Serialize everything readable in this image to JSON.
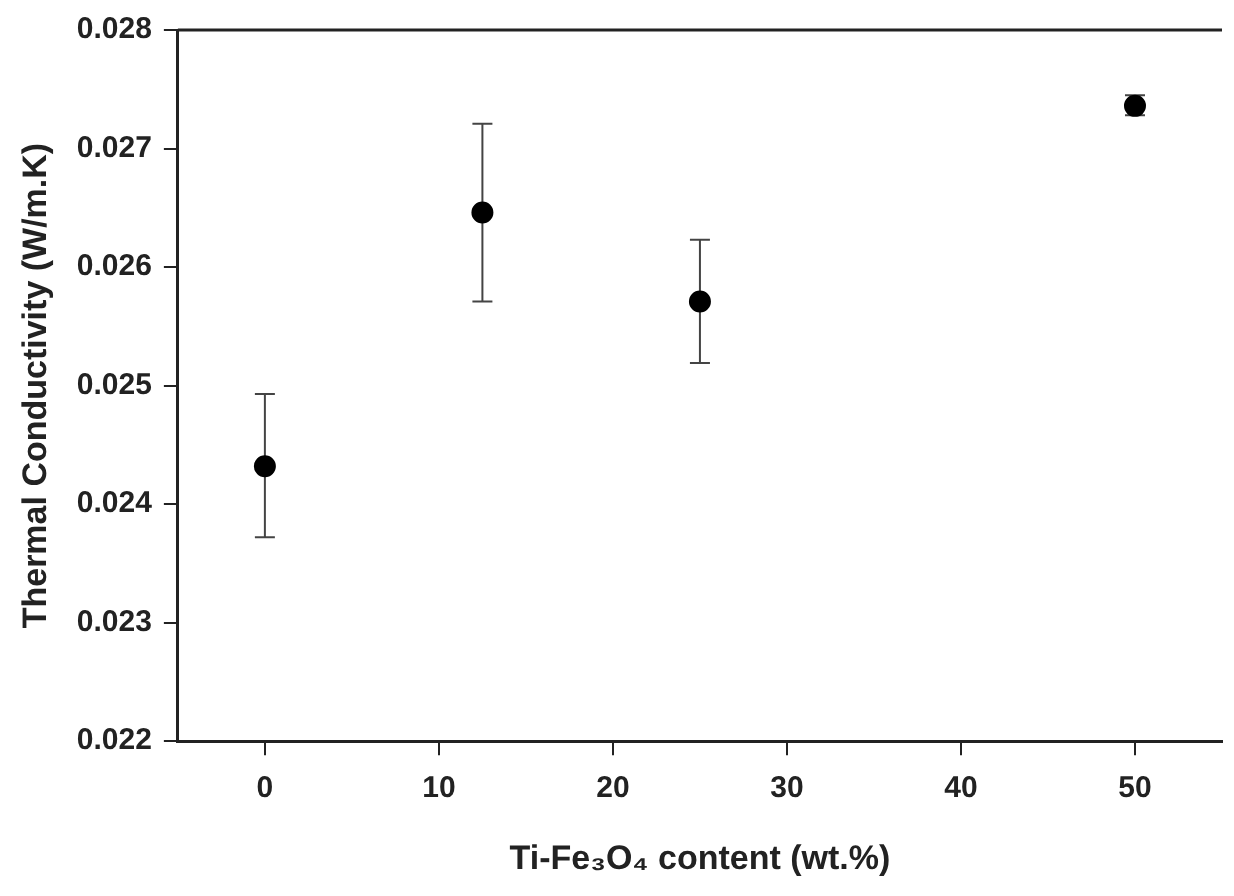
{
  "chart_data": {
    "type": "scatter",
    "xlabel": "Ti-Fe₃O₄ content (wt.%)",
    "ylabel": "Thermal Conductivity (W/m.K)",
    "x": [
      0,
      12.5,
      25,
      50
    ],
    "series": [
      {
        "color": "#000000",
        "values": [
          0.02432,
          0.02646,
          0.02571,
          0.02736
        ],
        "errors": [
          [
            0.02372,
            0.02493
          ],
          [
            0.02571,
            0.02721
          ],
          [
            0.02519,
            0.02623
          ],
          [
            0.02728,
            0.02745
          ]
        ]
      }
    ],
    "xlim": [
      -5,
      55
    ],
    "xticks": [
      0,
      10,
      20,
      30,
      40,
      50
    ],
    "ylim": [
      0.022,
      0.028
    ],
    "yticks": [
      0.022,
      0.023,
      0.024,
      0.025,
      0.026,
      0.027,
      0.028
    ],
    "grid": false,
    "legend": false,
    "marker": "circle"
  }
}
